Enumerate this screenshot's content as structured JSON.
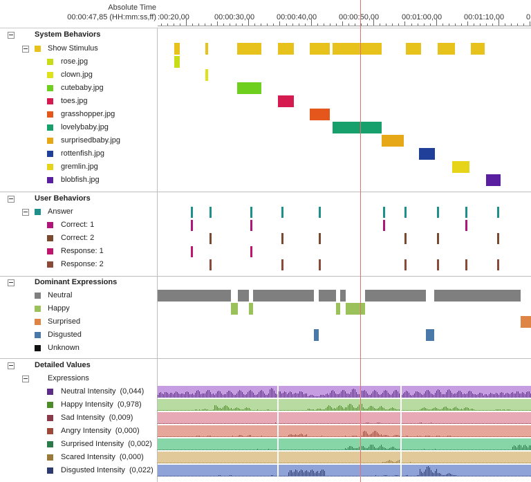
{
  "header": {
    "title": "Absolute Time",
    "current_time": "00:00:47,85 (HH:mm:ss,ff)",
    "ticks": [
      ":00:20,00",
      "00:00:30,00",
      "00:00:40,00",
      "00:00:50,00",
      "00:01:00,00",
      "00:01:10,00",
      "0"
    ]
  },
  "colors": {
    "stimulus": "#e8c21c",
    "stimulus_items": [
      "#c9dc1a",
      "#dfe21a",
      "#6fcf1f",
      "#d41a4f",
      "#e4561c",
      "#17a06c",
      "#e7a818",
      "#1f3f99",
      "#e5d41a",
      "#5a1ea0"
    ],
    "answer": "#1f8f8c",
    "correct1": "#b0157a",
    "correct2": "#7a4a30",
    "response1": "#c0156f",
    "response2": "#8a4a3a",
    "expressions": [
      "#7f7f7f",
      "#9bc15a",
      "#de8444",
      "#4879a8",
      "#111111"
    ],
    "detailed": [
      "#5c2d86",
      "#4e8c2a",
      "#8a3a4a",
      "#9e4a3a",
      "#2a7a4a",
      "#9a7a3a",
      "#2c3a6e"
    ],
    "detailed_fill": [
      "#c59de0",
      "#b7dba0",
      "#e8a9b6",
      "#e6a69a",
      "#86d6a8",
      "#e2c99a",
      "#8fa3d8"
    ],
    "cursor": "#e07070"
  },
  "sections": {
    "system": {
      "title": "System Behaviors",
      "group": "Show Stimulus",
      "items": [
        "rose.jpg",
        "clown.jpg",
        "cutebaby.jpg",
        "toes.jpg",
        "grasshopper.jpg",
        "lovelybaby.jpg",
        "surprisedbaby.jpg",
        "rottenfish.jpg",
        "gremlin.jpg",
        "blobfish.jpg"
      ]
    },
    "user": {
      "title": "User Behaviors",
      "group": "Answer",
      "items": [
        "Correct: 1",
        "Correct: 2",
        "Response: 1",
        "Response: 2"
      ]
    },
    "dominant": {
      "title": "Dominant Expressions",
      "items": [
        "Neutral",
        "Happy",
        "Surprised",
        "Disgusted",
        "Unknown"
      ]
    },
    "detailed": {
      "title": "Detailed Values",
      "group": "Expressions",
      "items": [
        {
          "label": "Neutral Intensity",
          "value": "(0,044)"
        },
        {
          "label": "Happy Intensity",
          "value": "(0,978)"
        },
        {
          "label": "Sad Intensity",
          "value": "(0,009)"
        },
        {
          "label": "Angry Intensity",
          "value": "(0,000)"
        },
        {
          "label": "Surprised Intensity",
          "value": "(0,002)"
        },
        {
          "label": "Scared Intensity",
          "value": "(0,000)"
        },
        {
          "label": "Disgusted Intensity",
          "value": "(0,022)"
        }
      ]
    }
  },
  "timeline": {
    "cursor_seconds": 47.85,
    "stimulus_intervals": [
      [
        18.2,
        19.0
      ],
      [
        23.1,
        23.6
      ],
      [
        28.2,
        32.1
      ],
      [
        34.7,
        37.3
      ],
      [
        39.8,
        43.0
      ],
      [
        43.5,
        47.7
      ],
      [
        47.7,
        51.3
      ],
      [
        55.2,
        57.6
      ],
      [
        60.2,
        63.0
      ],
      [
        65.5,
        67.8
      ]
    ],
    "stimulus_items": [
      [
        18.2,
        19.0
      ],
      [
        23.1,
        23.6
      ],
      [
        28.2,
        32.1
      ],
      [
        34.7,
        37.3
      ],
      [
        39.8,
        43.0
      ],
      [
        43.5,
        51.3
      ],
      [
        51.3,
        54.8
      ],
      [
        57.3,
        59.8
      ],
      [
        62.6,
        65.3
      ],
      [
        68.0,
        70.3
      ]
    ],
    "answer": [
      20.8,
      23.8,
      30.3,
      35.3,
      41.2,
      51.5,
      54.9,
      60.1,
      64.7,
      69.8
    ],
    "correct1": [
      20.8,
      30.3,
      51.5,
      64.7
    ],
    "correct2": [
      23.8,
      35.3,
      41.2,
      54.9,
      60.1,
      69.8
    ],
    "response1": [
      20.8,
      30.3
    ],
    "response2": [
      23.8,
      35.3,
      41.2,
      54.9,
      60.1,
      64.7,
      69.8
    ],
    "dominant": [
      [
        [
          0,
          27.2
        ],
        [
          28.3,
          30.1
        ],
        [
          30.8,
          40.5
        ],
        [
          41.2,
          44.0
        ],
        [
          44.7,
          45.6
        ],
        [
          48.7,
          58.4
        ],
        [
          59.7,
          73.5
        ]
      ],
      [
        [
          27.2,
          28.3
        ],
        [
          30.1,
          30.8
        ],
        [
          44.0,
          44.7
        ],
        [
          45.6,
          48.7
        ]
      ],
      [
        [
          73.5,
          75.6
        ]
      ],
      [
        [
          40.5,
          41.2
        ],
        [
          58.4,
          59.7
        ]
      ],
      [
        [
          75.7,
          75.9
        ]
      ]
    ],
    "detailed_segments": [
      [
        0,
        34.6
      ],
      [
        34.8,
        54.3
      ],
      [
        54.5,
        77.6
      ],
      [
        77.8,
        78.5
      ]
    ],
    "detailed_series": [
      [
        0.75,
        0.7,
        0.8,
        0.7,
        0.72,
        0.68,
        0.85,
        0.75,
        0.3,
        0.75,
        0.85,
        0.7,
        0.7,
        0.6,
        0.75,
        0.8,
        0.75,
        0.55,
        0.7,
        0.8
      ],
      [
        0.05,
        0.08,
        0.2,
        0.55,
        0.3,
        0.1,
        0.05,
        0.1,
        0.25,
        0.55,
        0.7,
        0.45,
        0.3,
        0.05,
        0.3,
        0.4,
        0.35,
        0.1,
        0.2,
        0.05
      ],
      [
        0.08,
        0.05,
        0.1,
        0.06,
        0.05,
        0.08,
        0.1,
        0.05,
        0.06,
        0.08,
        0.05,
        0.12,
        0.06,
        0.05,
        0.1,
        0.08,
        0.05,
        0.06,
        0.08,
        0.05
      ],
      [
        0.1,
        0.12,
        0.15,
        0.08,
        0.2,
        0.1,
        0.05,
        0.4,
        0.12,
        0.08,
        0.15,
        0.6,
        0.2,
        0.1,
        0.15,
        0.12,
        0.1,
        0.08,
        0.1,
        0.05
      ],
      [
        0.05,
        0.06,
        0.1,
        0.08,
        0.05,
        0.1,
        0.05,
        0.06,
        0.08,
        0.1,
        0.4,
        0.55,
        0.3,
        0.05,
        0.1,
        0.06,
        0.05,
        0.08,
        0.1,
        0.7
      ],
      [
        0.04,
        0.05,
        0.04,
        0.06,
        0.05,
        0.04,
        0.05,
        0.04,
        0.06,
        0.05,
        0.04,
        0.05,
        0.3,
        0.1,
        0.05,
        0.04,
        0.05,
        0.06,
        0.04,
        0.05
      ],
      [
        0.1,
        0.08,
        0.1,
        0.12,
        0.1,
        0.08,
        0.1,
        0.9,
        0.85,
        0.1,
        0.08,
        0.1,
        0.12,
        0.1,
        0.95,
        0.3,
        0.1,
        0.08,
        0.1,
        0.05
      ]
    ]
  }
}
